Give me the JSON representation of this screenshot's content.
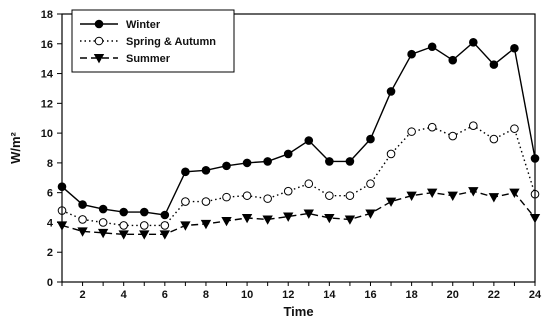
{
  "chart_data": {
    "type": "line",
    "xlabel": "Time",
    "ylabel": "W/m²",
    "xlim": [
      1,
      24
    ],
    "ylim": [
      0,
      18
    ],
    "x_ticks": [
      2,
      4,
      6,
      8,
      10,
      12,
      14,
      16,
      18,
      20,
      22,
      24
    ],
    "y_ticks": [
      0,
      2,
      4,
      6,
      8,
      10,
      12,
      14,
      16,
      18
    ],
    "grid": false,
    "legend_position": "top-left",
    "x": [
      1,
      2,
      3,
      4,
      5,
      6,
      7,
      8,
      9,
      10,
      11,
      12,
      13,
      14,
      15,
      16,
      17,
      18,
      19,
      20,
      21,
      22,
      23,
      24
    ],
    "series": [
      {
        "name": "Winter",
        "line": "solid",
        "marker": "filled-circle",
        "color": "#000000",
        "values": [
          6.4,
          5.2,
          4.9,
          4.7,
          4.7,
          4.5,
          7.4,
          7.5,
          7.8,
          8.0,
          8.1,
          8.6,
          9.5,
          8.1,
          8.1,
          9.6,
          12.8,
          15.3,
          15.8,
          14.9,
          16.1,
          14.6,
          15.7,
          8.3
        ]
      },
      {
        "name": "Spring & Autumn",
        "line": "dotted",
        "marker": "open-circle",
        "color": "#000000",
        "values": [
          4.8,
          4.2,
          4.0,
          3.8,
          3.8,
          3.8,
          5.4,
          5.4,
          5.7,
          5.8,
          5.6,
          6.1,
          6.6,
          5.8,
          5.8,
          6.6,
          8.6,
          10.1,
          10.4,
          9.8,
          10.5,
          9.6,
          10.3,
          5.9
        ]
      },
      {
        "name": "Summer",
        "line": "dashed",
        "marker": "filled-triangle-down",
        "color": "#000000",
        "values": [
          3.8,
          3.4,
          3.3,
          3.2,
          3.2,
          3.2,
          3.8,
          3.9,
          4.1,
          4.3,
          4.2,
          4.4,
          4.6,
          4.3,
          4.2,
          4.6,
          5.4,
          5.8,
          6.0,
          5.8,
          6.1,
          5.7,
          6.0,
          4.3
        ]
      }
    ]
  }
}
